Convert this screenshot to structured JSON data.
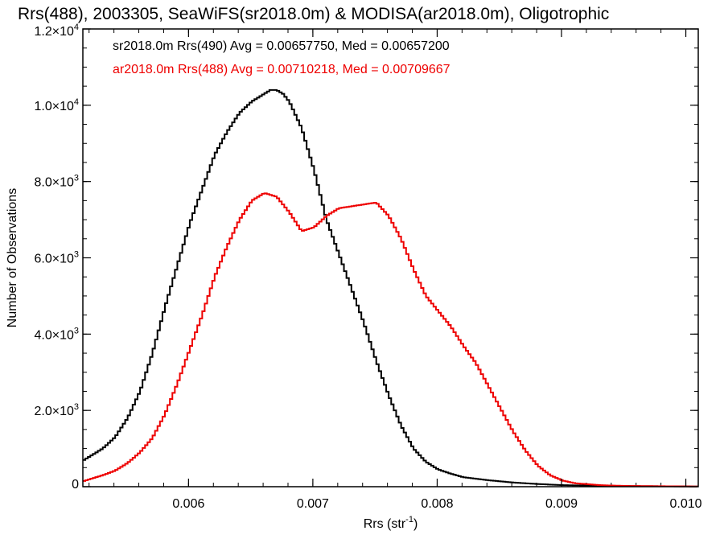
{
  "chart_data": {
    "type": "line",
    "title": "Rrs(488), 2003305, SeaWiFS(sr2018.0m) & MODISA(ar2018.0m), Oligotrophic",
    "xlabel": {
      "main": "Rrs (str",
      "sup": "-1",
      "close": ")"
    },
    "ylabel": "Number of Observations",
    "xlim": [
      0.00515,
      0.0101
    ],
    "ylim": [
      0,
      12000
    ],
    "x_ticks": [
      {
        "value": 0.006,
        "label": "0.006"
      },
      {
        "value": 0.007,
        "label": "0.007"
      },
      {
        "value": 0.008,
        "label": "0.008"
      },
      {
        "value": 0.009,
        "label": "0.009"
      },
      {
        "value": 0.01,
        "label": "0.010"
      }
    ],
    "y_ticks": [
      {
        "value": 0,
        "mant": "0",
        "sup": ""
      },
      {
        "value": 2000,
        "mant": "2.0×10",
        "sup": "3"
      },
      {
        "value": 4000,
        "mant": "4.0×10",
        "sup": "3"
      },
      {
        "value": 6000,
        "mant": "6.0×10",
        "sup": "3"
      },
      {
        "value": 8000,
        "mant": "8.0×10",
        "sup": "3"
      },
      {
        "value": 10000,
        "mant": "1.0×10",
        "sup": "4"
      },
      {
        "value": 12000,
        "mant": "1.2×10",
        "sup": "4"
      }
    ],
    "x_minor_step": 0.0002,
    "y_minor_step": 500,
    "series": [
      {
        "name": "sr2018.0m Rrs(490) Avg = 0.00657750, Med = 0.00657200",
        "color": "#000000",
        "x": [
          0.00515,
          0.0053,
          0.0054,
          0.0055,
          0.0056,
          0.0057,
          0.0058,
          0.0059,
          0.006,
          0.0061,
          0.0062,
          0.0063,
          0.0064,
          0.0065,
          0.0066,
          0.00665,
          0.0067,
          0.00675,
          0.0068,
          0.0069,
          0.007,
          0.0071,
          0.0072,
          0.0073,
          0.0074,
          0.0075,
          0.0076,
          0.0077,
          0.0078,
          0.0079,
          0.008,
          0.0081,
          0.0082,
          0.0084,
          0.0086,
          0.0088,
          0.009,
          0.0093,
          0.0096,
          0.0101
        ],
        "y": [
          700,
          1000,
          1300,
          1800,
          2500,
          3500,
          4700,
          5800,
          6900,
          7800,
          8700,
          9300,
          9800,
          10100,
          10300,
          10400,
          10400,
          10300,
          10100,
          9400,
          8300,
          7000,
          6100,
          5200,
          4300,
          3300,
          2400,
          1600,
          1000,
          650,
          450,
          340,
          250,
          170,
          110,
          70,
          40,
          25,
          15,
          5
        ]
      },
      {
        "name": "ar2018.0m Rrs(488) Avg = 0.00710218, Med = 0.00709667",
        "color": "#ee0000",
        "x": [
          0.00515,
          0.0053,
          0.0054,
          0.0055,
          0.0056,
          0.0057,
          0.0058,
          0.0059,
          0.006,
          0.0061,
          0.0062,
          0.0063,
          0.0064,
          0.0065,
          0.0066,
          0.0067,
          0.0068,
          0.0069,
          0.007,
          0.0071,
          0.0072,
          0.0073,
          0.0074,
          0.0075,
          0.0076,
          0.0077,
          0.0078,
          0.0079,
          0.008,
          0.0081,
          0.0082,
          0.0083,
          0.0084,
          0.0085,
          0.0086,
          0.0087,
          0.0088,
          0.0089,
          0.009,
          0.0091,
          0.0093,
          0.0095,
          0.0101
        ],
        "y": [
          150,
          300,
          420,
          620,
          900,
          1280,
          1900,
          2700,
          3600,
          4500,
          5500,
          6300,
          7000,
          7500,
          7700,
          7600,
          7200,
          6700,
          6800,
          7100,
          7300,
          7350,
          7400,
          7450,
          7100,
          6500,
          5700,
          5000,
          4600,
          4200,
          3700,
          3250,
          2650,
          2050,
          1450,
          950,
          550,
          300,
          160,
          90,
          40,
          20,
          5
        ]
      }
    ]
  }
}
